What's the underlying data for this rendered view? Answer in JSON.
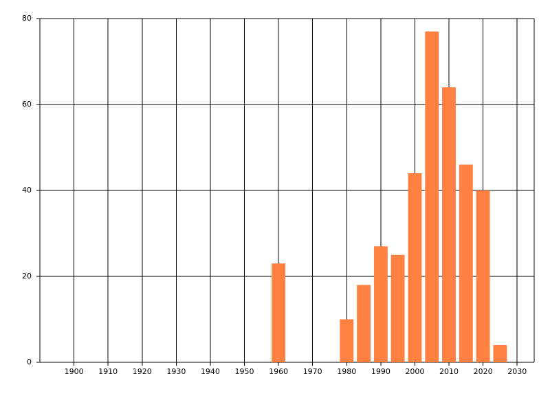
{
  "chart_data": {
    "type": "bar",
    "x": [
      1960,
      1980,
      1985,
      1990,
      1995,
      2000,
      2005,
      2010,
      2015,
      2020,
      2025
    ],
    "values": [
      23,
      10,
      18,
      27,
      25,
      44,
      77,
      64,
      46,
      40,
      4
    ],
    "color": "#ff8040",
    "xlim": [
      1890,
      2035
    ],
    "xticks": [
      1900,
      1910,
      1920,
      1930,
      1940,
      1950,
      1960,
      1970,
      1980,
      1990,
      2000,
      2010,
      2020,
      2030
    ],
    "ylim": [
      0,
      80
    ],
    "yticks": [
      0,
      20,
      40,
      60,
      80
    ],
    "grid": true
  }
}
